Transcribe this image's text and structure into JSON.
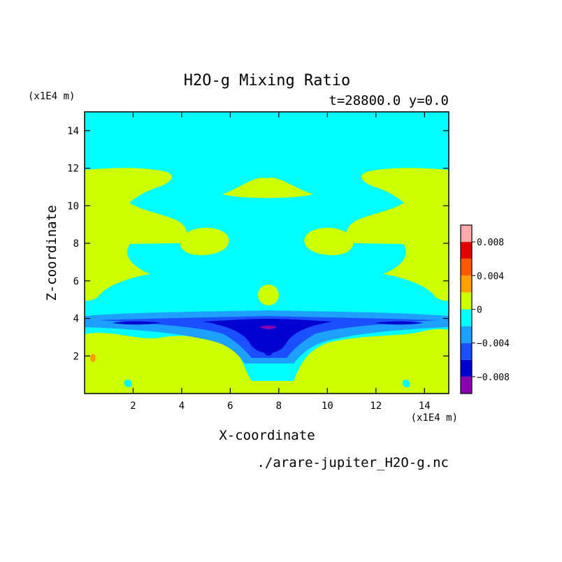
{
  "chart_data": {
    "type": "heatmap",
    "title": "H2O-g Mixing Ratio",
    "subtitle": "t=28800.0 y=0.0",
    "xlabel": "X-coordinate",
    "ylabel": "Z-coordinate",
    "x_unit": "(x1E4 m)",
    "y_unit": "(x1E4 m)",
    "source": "./arare-jupiter_H2O-g.nc",
    "xlim": [
      0,
      15
    ],
    "ylim": [
      0,
      15
    ],
    "x_ticks": [
      2,
      4,
      6,
      8,
      10,
      12,
      14
    ],
    "y_ticks": [
      2,
      4,
      6,
      8,
      10,
      12,
      14
    ],
    "x_tick_labels": [
      "2",
      "4",
      "6",
      "8",
      "10",
      "12",
      "14"
    ],
    "y_tick_labels": [
      "2",
      "4",
      "6",
      "8",
      "10",
      "12",
      "14"
    ],
    "levels": [
      -0.01,
      -0.008,
      -0.006,
      -0.004,
      -0.002,
      0,
      0.002,
      0.004,
      0.006,
      0.008,
      0.01
    ],
    "colors": [
      "#8b00b0",
      "#0000d0",
      "#1a50ff",
      "#1ea0ff",
      "#00ffff",
      "#ccff00",
      "#ffa000",
      "#ff5a00",
      "#e00000",
      "#ffaaaa"
    ],
    "colorbar_ticks": [
      0.008,
      0.004,
      0,
      -0.004,
      -0.008
    ],
    "colorbar_labels": [
      "0.008",
      "0.004",
      "0",
      "−0.004",
      "−0.008"
    ],
    "grid": false,
    "colorbar_position": "right"
  }
}
